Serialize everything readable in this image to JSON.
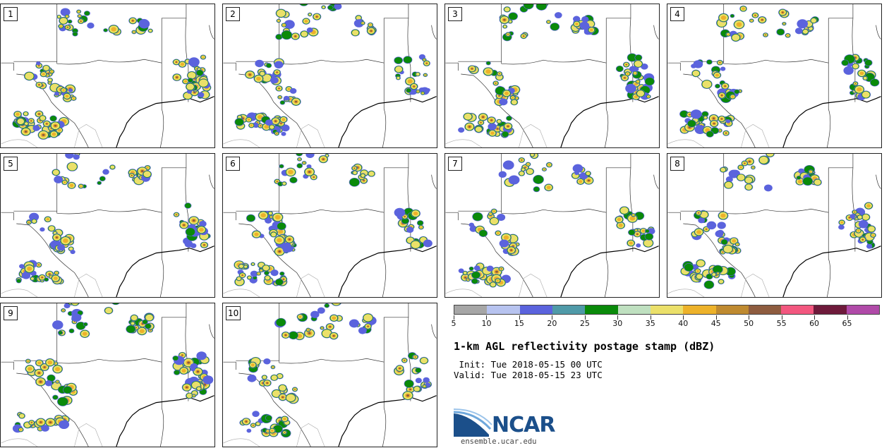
{
  "panels": [
    {
      "label": "1",
      "seed": 11
    },
    {
      "label": "2",
      "seed": 23
    },
    {
      "label": "3",
      "seed": 37
    },
    {
      "label": "4",
      "seed": 41
    },
    {
      "label": "5",
      "seed": 53
    },
    {
      "label": "6",
      "seed": 67
    },
    {
      "label": "7",
      "seed": 71
    },
    {
      "label": "8",
      "seed": 89
    },
    {
      "label": "9",
      "seed": 97
    },
    {
      "label": "10",
      "seed": 103
    }
  ],
  "colorbar": {
    "colors": [
      "#a6a6a6",
      "#b7c3ef",
      "#5b63dd",
      "#4f9aa8",
      "#0a8a0a",
      "#bfe0c0",
      "#ebe06a",
      "#edb22a",
      "#bf8a30",
      "#8e5c3f",
      "#f2577f",
      "#6e1a3b",
      "#b04aa8"
    ],
    "tick_labels": [
      "5",
      "10",
      "15",
      "20",
      "25",
      "30",
      "35",
      "40",
      "45",
      "50",
      "55",
      "60",
      "65"
    ]
  },
  "title": "1-km AGL reflectivity postage stamp (dBZ)",
  "init_line": " Init: Tue 2018-05-15 00 UTC",
  "valid_line": "Valid: Tue 2018-05-15 23 UTC",
  "logo": {
    "text": "NCAR",
    "url": "ensemble.ucar.edu"
  }
}
